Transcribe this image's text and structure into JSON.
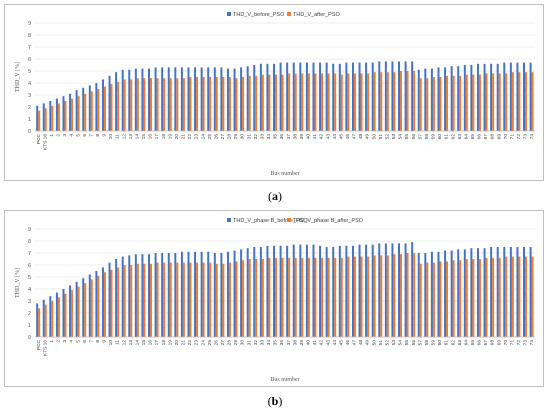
{
  "panels": [
    {
      "label_open": "(",
      "label_letter": "a",
      "label_close": ")",
      "chart": {
        "type": "bar",
        "title": "",
        "xlabel": "Bus number",
        "ylabel": "THD_V [%]",
        "ylim": [
          0,
          9
        ],
        "yticks": [
          0,
          1,
          2,
          3,
          4,
          5,
          6,
          7,
          8,
          9
        ],
        "grid": true,
        "legend_position": "top",
        "categories": [
          "PCC",
          "KTS 16",
          "1",
          "2",
          "3",
          "4",
          "5",
          "6",
          "7",
          "8",
          "9",
          "10",
          "11",
          "12",
          "13",
          "14",
          "15",
          "16",
          "17",
          "18",
          "19",
          "20",
          "21",
          "22",
          "23",
          "24",
          "25",
          "26",
          "27",
          "28",
          "29",
          "30",
          "31",
          "32",
          "33",
          "34",
          "35",
          "36",
          "37",
          "38",
          "39",
          "40",
          "41",
          "42",
          "43",
          "44",
          "45",
          "46",
          "47",
          "48",
          "49",
          "50",
          "51",
          "52",
          "53",
          "54",
          "55",
          "56",
          "57",
          "58",
          "59",
          "60",
          "61",
          "62",
          "63",
          "64",
          "65",
          "66",
          "67",
          "68",
          "69",
          "70",
          "71",
          "72",
          "73",
          "74"
        ],
        "series": [
          {
            "name": "THD_V_before_PSO",
            "color": "#4472c4",
            "values": [
              2.1,
              2.3,
              2.5,
              2.7,
              2.9,
              3.1,
              3.4,
              3.6,
              3.8,
              4.0,
              4.3,
              4.6,
              4.9,
              5.1,
              5.1,
              5.2,
              5.2,
              5.2,
              5.3,
              5.3,
              5.3,
              5.3,
              5.3,
              5.3,
              5.3,
              5.3,
              5.3,
              5.3,
              5.3,
              5.2,
              5.2,
              5.3,
              5.4,
              5.5,
              5.6,
              5.6,
              5.6,
              5.7,
              5.7,
              5.7,
              5.7,
              5.7,
              5.7,
              5.7,
              5.7,
              5.6,
              5.6,
              5.7,
              5.7,
              5.7,
              5.7,
              5.7,
              5.8,
              5.8,
              5.8,
              5.8,
              5.8,
              5.8,
              5.1,
              5.2,
              5.2,
              5.3,
              5.3,
              5.4,
              5.4,
              5.5,
              5.5,
              5.6,
              5.6,
              5.6,
              5.6,
              5.7,
              5.7,
              5.7,
              5.7,
              5.7
            ]
          },
          {
            "name": "THD_V_after_PSO",
            "color": "#ed7d31",
            "values": [
              1.7,
              1.9,
              2.1,
              2.3,
              2.5,
              2.7,
              2.9,
              3.1,
              3.3,
              3.5,
              3.7,
              3.9,
              4.1,
              4.3,
              4.3,
              4.4,
              4.4,
              4.4,
              4.4,
              4.4,
              4.4,
              4.4,
              4.4,
              4.5,
              4.5,
              4.5,
              4.5,
              4.5,
              4.5,
              4.5,
              4.4,
              4.5,
              4.6,
              4.6,
              4.7,
              4.7,
              4.7,
              4.7,
              4.8,
              4.8,
              4.8,
              4.8,
              4.8,
              4.8,
              4.8,
              4.8,
              4.7,
              4.8,
              4.8,
              4.8,
              4.8,
              4.9,
              4.9,
              4.9,
              4.9,
              5.0,
              5.0,
              5.0,
              4.4,
              4.4,
              4.5,
              4.5,
              4.6,
              4.6,
              4.6,
              4.7,
              4.7,
              4.7,
              4.8,
              4.8,
              4.8,
              4.8,
              4.9,
              4.9,
              4.9,
              4.9
            ]
          }
        ]
      }
    },
    {
      "label_open": "(",
      "label_letter": "b",
      "label_close": ")",
      "chart": {
        "type": "bar",
        "title": "",
        "xlabel": "Bus number",
        "ylabel": "THD_V [%]",
        "ylim": [
          0,
          9
        ],
        "yticks": [
          0,
          1,
          2,
          3,
          4,
          5,
          6,
          7,
          8,
          9
        ],
        "grid": true,
        "legend_position": "top",
        "categories": [
          "PCC",
          "KTS 16",
          "1",
          "2",
          "3",
          "4",
          "5",
          "6",
          "7",
          "8",
          "9",
          "10",
          "11",
          "12",
          "13",
          "14",
          "15",
          "16",
          "17",
          "18",
          "19",
          "20",
          "21",
          "22",
          "23",
          "24",
          "25",
          "26",
          "27",
          "28",
          "29",
          "30",
          "31",
          "32",
          "33",
          "34",
          "35",
          "36",
          "37",
          "38",
          "39",
          "40",
          "41",
          "42",
          "43",
          "44",
          "45",
          "46",
          "47",
          "48",
          "49",
          "50",
          "51",
          "52",
          "53",
          "54",
          "55",
          "56",
          "57",
          "58",
          "59",
          "60",
          "61",
          "62",
          "63",
          "64",
          "65",
          "66",
          "67",
          "68",
          "69",
          "70",
          "71",
          "72",
          "73",
          "74"
        ],
        "series": [
          {
            "name": "THD_V_phase B_before_PSO",
            "color": "#4472c4",
            "values": [
              2.8,
              3.1,
              3.4,
              3.7,
              4.0,
              4.3,
              4.6,
              4.9,
              5.2,
              5.5,
              5.8,
              6.2,
              6.5,
              6.7,
              6.8,
              6.9,
              6.9,
              6.9,
              7.0,
              7.0,
              7.0,
              7.0,
              7.1,
              7.1,
              7.1,
              7.1,
              7.1,
              7.0,
              7.0,
              7.1,
              7.2,
              7.3,
              7.4,
              7.5,
              7.5,
              7.6,
              7.6,
              7.6,
              7.6,
              7.7,
              7.7,
              7.7,
              7.7,
              7.6,
              7.5,
              7.5,
              7.6,
              7.6,
              7.6,
              7.7,
              7.7,
              7.7,
              7.8,
              7.8,
              7.8,
              7.8,
              7.8,
              7.9,
              7.0,
              7.0,
              7.1,
              7.1,
              7.2,
              7.2,
              7.3,
              7.3,
              7.4,
              7.4,
              7.4,
              7.5,
              7.5,
              7.5,
              7.5,
              7.5,
              7.5,
              7.5
            ]
          },
          {
            "name": "THD_V_phase B_after_PSO",
            "color": "#ed7d31",
            "values": [
              2.4,
              2.7,
              3.0,
              3.3,
              3.6,
              3.9,
              4.2,
              4.5,
              4.8,
              5.1,
              5.4,
              5.6,
              5.8,
              6.0,
              6.0,
              6.1,
              6.1,
              6.1,
              6.2,
              6.2,
              6.2,
              6.2,
              6.2,
              6.2,
              6.2,
              6.2,
              6.2,
              6.1,
              6.1,
              6.2,
              6.3,
              6.4,
              6.5,
              6.5,
              6.5,
              6.6,
              6.6,
              6.6,
              6.6,
              6.6,
              6.6,
              6.6,
              6.6,
              6.6,
              6.6,
              6.6,
              6.6,
              6.7,
              6.7,
              6.7,
              6.7,
              6.8,
              6.8,
              6.8,
              6.9,
              6.9,
              7.0,
              7.0,
              6.1,
              6.2,
              6.2,
              6.3,
              6.3,
              6.4,
              6.4,
              6.5,
              6.5,
              6.5,
              6.6,
              6.6,
              6.6,
              6.7,
              6.7,
              6.7,
              6.7,
              6.7
            ]
          }
        ]
      }
    }
  ]
}
